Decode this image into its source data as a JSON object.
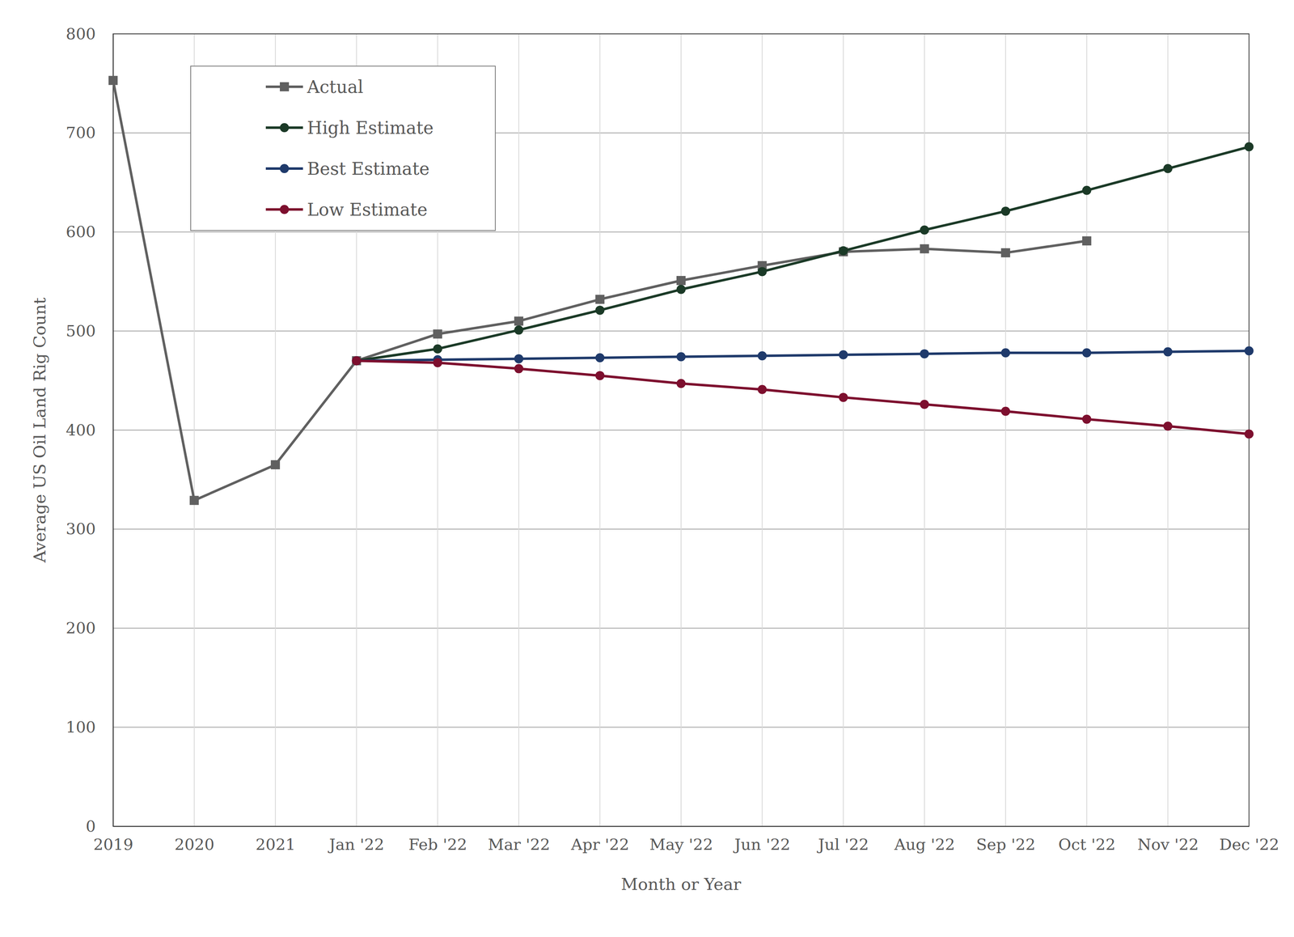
{
  "chart_data": {
    "type": "line",
    "x_label": "Month or Year",
    "y_label": "Average US Oil Land Rig Count",
    "categories": [
      "2019",
      "2020",
      "2021",
      "Jan '22",
      "Feb '22",
      "Mar '22",
      "Apr '22",
      "May '22",
      "Jun '22",
      "Jul '22",
      "Aug '22",
      "Sep '22",
      "Oct '22",
      "Nov '22",
      "Dec '22"
    ],
    "series": [
      {
        "name": "Actual",
        "color": "#606060",
        "marker": "square",
        "values": [
          753,
          329,
          365,
          470,
          497,
          510,
          532,
          551,
          566,
          580,
          583,
          579,
          591,
          null,
          null
        ]
      },
      {
        "name": "High Estimate",
        "color": "#1b3a27",
        "marker": "circle",
        "values": [
          null,
          null,
          null,
          470,
          482,
          501,
          521,
          542,
          560,
          581,
          602,
          621,
          642,
          664,
          686
        ]
      },
      {
        "name": "Best Estimate",
        "color": "#1f3a6b",
        "marker": "circle",
        "values": [
          null,
          null,
          null,
          470,
          471,
          472,
          473,
          474,
          475,
          476,
          477,
          478,
          478,
          479,
          480
        ]
      },
      {
        "name": "Low Estimate",
        "color": "#7d0f2e",
        "marker": "circle",
        "values": [
          null,
          null,
          null,
          470,
          468,
          462,
          455,
          447,
          441,
          433,
          426,
          419,
          411,
          404,
          396
        ]
      }
    ],
    "ylim": [
      0,
      800
    ],
    "yticks": [
      0,
      100,
      200,
      300,
      400,
      500,
      600,
      700,
      800
    ],
    "grid": true,
    "legend": "upper left"
  }
}
